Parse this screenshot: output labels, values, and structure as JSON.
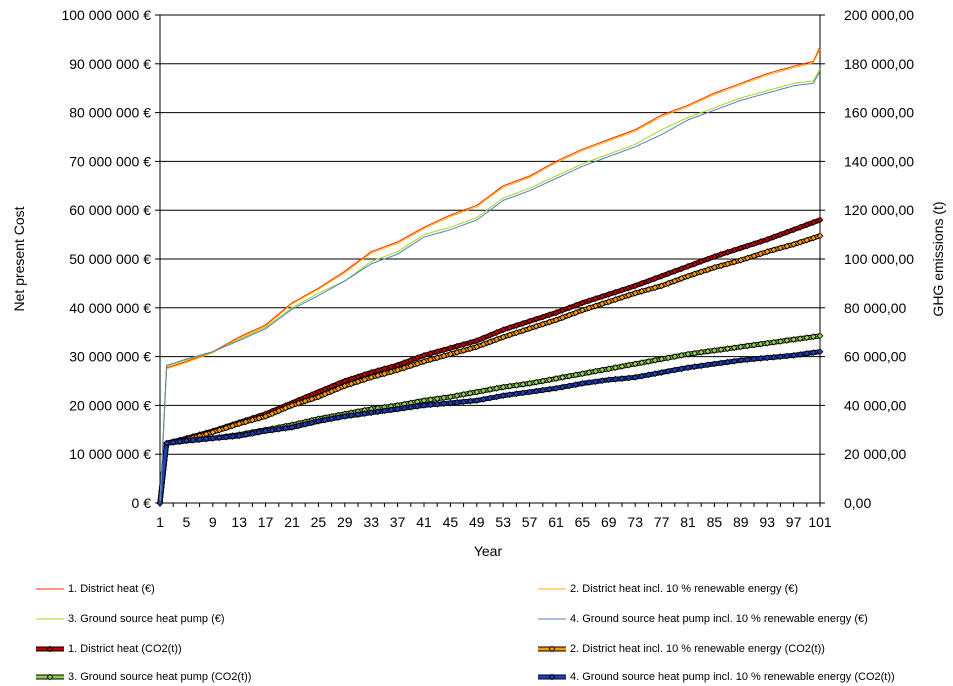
{
  "chart_data": {
    "type": "line",
    "xlabel": "Year",
    "ylabel_left": "Net present Cost",
    "ylabel_right": "GHG emissions (t)",
    "x_range": [
      1,
      101
    ],
    "x_ticks": [
      "1",
      "5",
      "9",
      "13",
      "17",
      "21",
      "25",
      "29",
      "33",
      "37",
      "41",
      "45",
      "49",
      "53",
      "57",
      "61",
      "65",
      "69",
      "73",
      "77",
      "81",
      "85",
      "89",
      "93",
      "97",
      "101"
    ],
    "y_left_range": [
      0,
      100000000
    ],
    "y_left_ticks": [
      "0 €",
      "10 000 000 €",
      "20 000 000 €",
      "30 000 000 €",
      "40 000 000 €",
      "50 000 000 €",
      "60 000 000 €",
      "70 000 000 €",
      "80 000 000 €",
      "90 000 000 €",
      "100 000 000 €"
    ],
    "y_right_range": [
      0,
      200000
    ],
    "y_right_ticks": [
      "0,00",
      "20 000,00",
      "40 000,00",
      "60 000,00",
      "80 000,00",
      "100 000,00",
      "120 000,00",
      "140 000,00",
      "160 000,00",
      "180 000,00",
      "200 000,00"
    ],
    "grid": "horizontal",
    "legend_position": "bottom",
    "series": [
      {
        "name": "1. District heat (€)",
        "axis": "left",
        "color": "#ff2a00",
        "marker": false,
        "x": [
          1,
          2,
          5,
          9,
          13,
          17,
          21,
          25,
          29,
          33,
          37,
          41,
          45,
          49,
          53,
          57,
          61,
          65,
          69,
          73,
          77,
          81,
          85,
          89,
          93,
          97,
          100,
          101
        ],
        "y": [
          0,
          27700000,
          29000000,
          31000000,
          34000000,
          36500000,
          41000000,
          44000000,
          47500000,
          51500000,
          53500000,
          56500000,
          59000000,
          61000000,
          65000000,
          67000000,
          70000000,
          72500000,
          74500000,
          76500000,
          79500000,
          81500000,
          84000000,
          86000000,
          88000000,
          89500000,
          90500000,
          93500000
        ]
      },
      {
        "name": "2. District heat incl. 10 % renewable energy (€)",
        "axis": "left",
        "color": "#ffb000",
        "marker": false,
        "x": [
          1,
          2,
          5,
          9,
          13,
          17,
          21,
          25,
          29,
          33,
          37,
          41,
          45,
          49,
          53,
          57,
          61,
          65,
          69,
          73,
          77,
          81,
          85,
          89,
          93,
          97,
          100,
          101
        ],
        "y": [
          0,
          27500000,
          28800000,
          30800000,
          33800000,
          36200000,
          40800000,
          43800000,
          47200000,
          51200000,
          53200000,
          56200000,
          58700000,
          60700000,
          64700000,
          66700000,
          69700000,
          72200000,
          74200000,
          76200000,
          79200000,
          81200000,
          83700000,
          85700000,
          87700000,
          89200000,
          90200000,
          93000000
        ]
      },
      {
        "name": "3. Ground source heat pump (€)",
        "axis": "left",
        "color": "#a6d41f",
        "marker": false,
        "x": [
          1,
          2,
          5,
          9,
          13,
          17,
          21,
          25,
          29,
          33,
          37,
          41,
          45,
          49,
          53,
          57,
          61,
          65,
          69,
          73,
          77,
          81,
          85,
          89,
          93,
          97,
          100,
          101
        ],
        "y": [
          0,
          28000000,
          29300000,
          31000000,
          33500000,
          36000000,
          40000000,
          43000000,
          45500000,
          49500000,
          51500000,
          55000000,
          56500000,
          58500000,
          62500000,
          64500000,
          67000000,
          69500000,
          71500000,
          73500000,
          76500000,
          79000000,
          81000000,
          83000000,
          84500000,
          86000000,
          86500000,
          89000000
        ]
      },
      {
        "name": "4. Ground source heat pump incl. 10 % renewable energy (€)",
        "axis": "left",
        "color": "#4f81bd",
        "marker": false,
        "x": [
          1,
          2,
          5,
          9,
          13,
          17,
          21,
          25,
          29,
          33,
          37,
          41,
          45,
          49,
          53,
          57,
          61,
          65,
          69,
          73,
          77,
          81,
          85,
          89,
          93,
          97,
          100,
          101
        ],
        "y": [
          0,
          28200000,
          29500000,
          31000000,
          33300000,
          35700000,
          39700000,
          42500000,
          45500000,
          49000000,
          51000000,
          54500000,
          56000000,
          58000000,
          62000000,
          64000000,
          66500000,
          69000000,
          71000000,
          73000000,
          75500000,
          78500000,
          80500000,
          82500000,
          84000000,
          85500000,
          86000000,
          88500000
        ]
      },
      {
        "name": "1. District heat (CO2(t))",
        "axis": "right",
        "color": "#c00000",
        "marker": true,
        "x": [
          1,
          2,
          5,
          9,
          13,
          17,
          21,
          25,
          29,
          33,
          37,
          41,
          45,
          49,
          53,
          57,
          61,
          65,
          69,
          73,
          77,
          81,
          85,
          89,
          93,
          97,
          101
        ],
        "y": [
          0,
          24500,
          26500,
          29500,
          33000,
          36500,
          41000,
          45500,
          50000,
          53500,
          56500,
          60500,
          63500,
          66500,
          71000,
          74500,
          78000,
          82000,
          85500,
          89000,
          93000,
          97000,
          101000,
          104500,
          108000,
          112000,
          116000
        ]
      },
      {
        "name": "2. District heat incl. 10 % renewable energy (CO2(t))",
        "axis": "right",
        "color": "#ff9900",
        "marker": true,
        "x": [
          1,
          2,
          5,
          9,
          13,
          17,
          21,
          25,
          29,
          33,
          37,
          41,
          45,
          49,
          53,
          57,
          61,
          65,
          69,
          73,
          77,
          81,
          85,
          89,
          93,
          97,
          101
        ],
        "y": [
          0,
          24500,
          26000,
          29000,
          32500,
          35500,
          40000,
          43500,
          48000,
          51500,
          54500,
          58000,
          61000,
          64000,
          68000,
          71500,
          75000,
          79000,
          82500,
          86000,
          89000,
          93000,
          96500,
          99500,
          103000,
          106000,
          109500
        ]
      },
      {
        "name": "3. Ground source heat pump (CO2(t))",
        "axis": "right",
        "color": "#92d050",
        "marker": true,
        "x": [
          1,
          2,
          5,
          9,
          13,
          17,
          21,
          25,
          29,
          33,
          37,
          41,
          45,
          49,
          53,
          57,
          61,
          65,
          69,
          73,
          77,
          81,
          85,
          89,
          93,
          97,
          101
        ],
        "y": [
          0,
          24500,
          25500,
          26500,
          28000,
          30000,
          32000,
          34500,
          36500,
          38500,
          40000,
          42000,
          43500,
          45500,
          47500,
          49000,
          51000,
          53000,
          55000,
          57000,
          59000,
          61000,
          62500,
          64000,
          65500,
          67000,
          68500
        ]
      },
      {
        "name": "4. Ground source heat pump incl. 10 % renewable energy (CO2(t))",
        "axis": "right",
        "color": "#1f3fbf",
        "marker": true,
        "x": [
          1,
          2,
          5,
          9,
          13,
          17,
          21,
          25,
          29,
          33,
          37,
          41,
          45,
          49,
          53,
          57,
          61,
          65,
          69,
          73,
          77,
          81,
          85,
          89,
          93,
          97,
          101
        ],
        "y": [
          0,
          24500,
          25500,
          26500,
          27500,
          29500,
          31000,
          33500,
          35500,
          37000,
          38500,
          40000,
          41000,
          42000,
          44000,
          45500,
          47000,
          49000,
          50500,
          51500,
          53500,
          55500,
          57000,
          58500,
          59500,
          60500,
          62000
        ]
      }
    ]
  }
}
